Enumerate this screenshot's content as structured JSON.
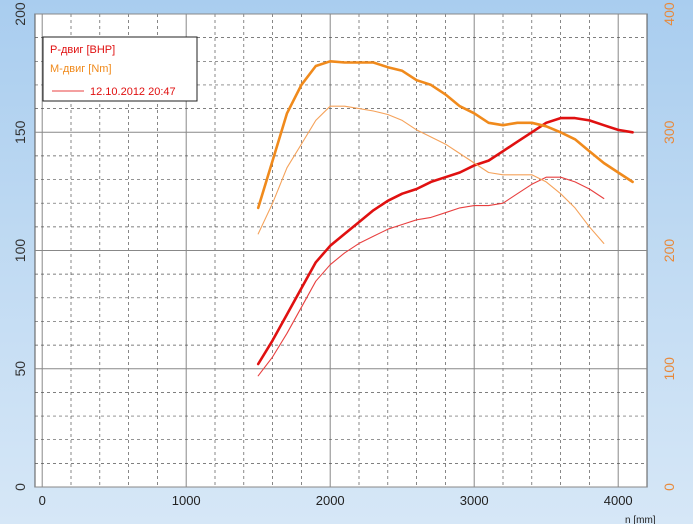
{
  "chart_data": {
    "type": "line",
    "xlabel": "n [mm]",
    "x_ticks": [
      0,
      1000,
      2000,
      3000,
      4000
    ],
    "xlim": [
      -50,
      4200
    ],
    "left_axis": {
      "ticks": [
        0,
        50,
        100,
        150,
        200
      ],
      "ylim": [
        0,
        200
      ],
      "color": "#333333"
    },
    "right_axis": {
      "ticks": [
        0,
        100,
        200,
        300,
        400
      ],
      "ylim": [
        0,
        400
      ],
      "color": "#e8893a"
    },
    "grid": true,
    "legend_position": "top-left",
    "series": [
      {
        "name": "P-двиг [BHP]",
        "axis": "left",
        "color": "#e01010",
        "width": 2.6,
        "x": [
          1500,
          1600,
          1700,
          1800,
          1900,
          2000,
          2100,
          2200,
          2300,
          2400,
          2500,
          2600,
          2700,
          2800,
          2900,
          3000,
          3100,
          3200,
          3300,
          3400,
          3500,
          3600,
          3700,
          3800,
          3900,
          4000,
          4100
        ],
        "y": [
          52,
          62,
          73,
          84,
          95,
          102,
          107,
          112,
          117,
          121,
          124,
          126,
          129,
          131,
          133,
          136,
          138,
          142,
          146,
          150,
          154,
          156,
          156,
          155,
          153,
          151,
          150
        ]
      },
      {
        "name": "M-двиг [Nm]",
        "axis": "right",
        "color": "#f08a1c",
        "width": 2.6,
        "x": [
          1500,
          1600,
          1700,
          1800,
          1900,
          2000,
          2100,
          2200,
          2300,
          2400,
          2500,
          2600,
          2700,
          2800,
          2900,
          3000,
          3100,
          3200,
          3300,
          3400,
          3500,
          3600,
          3700,
          3800,
          3900,
          4000,
          4100
        ],
        "y": [
          236,
          276,
          316,
          340,
          356,
          360,
          359,
          359,
          359,
          355,
          352,
          344,
          340,
          332,
          322,
          316,
          308,
          306,
          308,
          308,
          305,
          300,
          294,
          284,
          274,
          266,
          258
        ]
      },
      {
        "name": "12.10.2012 20:47",
        "axis": "left",
        "color": "#e84040",
        "width": 1.1,
        "x": [
          1500,
          1600,
          1700,
          1800,
          1900,
          2000,
          2100,
          2200,
          2300,
          2400,
          2500,
          2600,
          2700,
          2800,
          2900,
          3000,
          3100,
          3200,
          3300,
          3400,
          3500,
          3600,
          3700,
          3800,
          3900
        ],
        "y": [
          47,
          55,
          65,
          76,
          87,
          94,
          99,
          103,
          106,
          109,
          111,
          113,
          114,
          116,
          118,
          119,
          119,
          120,
          124,
          128,
          131,
          131,
          129,
          126,
          122
        ]
      },
      {
        "name": "",
        "axis": "right",
        "color": "#f5a25a",
        "width": 1.1,
        "x": [
          1500,
          1600,
          1700,
          1800,
          1900,
          2000,
          2100,
          2200,
          2300,
          2400,
          2500,
          2600,
          2700,
          2800,
          2900,
          3000,
          3100,
          3200,
          3300,
          3400,
          3500,
          3600,
          3700,
          3800,
          3900
        ],
        "y": [
          214,
          240,
          270,
          290,
          310,
          322,
          322,
          320,
          318,
          315,
          310,
          302,
          296,
          290,
          282,
          274,
          266,
          264,
          264,
          264,
          258,
          248,
          236,
          220,
          206
        ]
      }
    ]
  }
}
